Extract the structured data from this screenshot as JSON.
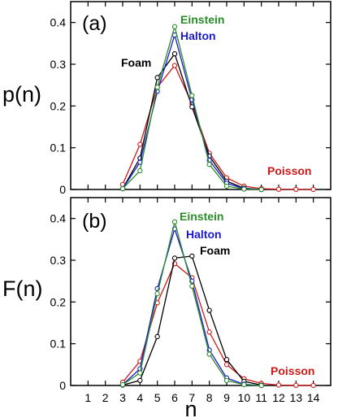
{
  "chart_data": [
    {
      "type": "line",
      "panel_label": "(a)",
      "ylabel": "p(n)",
      "xlabel": "",
      "xlim": [
        0,
        15
      ],
      "ylim": [
        0,
        0.45
      ],
      "x_ticks": [
        1,
        2,
        3,
        4,
        5,
        6,
        7,
        8,
        9,
        10,
        11,
        12,
        13,
        14
      ],
      "y_ticks": [
        0,
        0.1,
        0.2,
        0.3,
        0.4
      ],
      "y_tick_labels": [
        "0",
        "0.1",
        "0.2",
        "0.3",
        "0.4"
      ],
      "series": [
        {
          "name": "Einstein",
          "color": "#2a8c2a",
          "x": [
            3,
            4,
            5,
            6,
            7,
            8,
            9,
            10,
            11
          ],
          "y": [
            0.002,
            0.045,
            0.245,
            0.39,
            0.225,
            0.06,
            0.008,
            0.001,
            0
          ]
        },
        {
          "name": "Halton",
          "color": "#1a1acc",
          "x": [
            3,
            4,
            5,
            6,
            7,
            8,
            9,
            10,
            11
          ],
          "y": [
            0.002,
            0.065,
            0.235,
            0.37,
            0.215,
            0.07,
            0.015,
            0.002,
            0
          ]
        },
        {
          "name": "Foam",
          "color": "#000000",
          "x": [
            3,
            4,
            5,
            6,
            7,
            8,
            9,
            10,
            11
          ],
          "y": [
            0.002,
            0.075,
            0.268,
            0.325,
            0.198,
            0.08,
            0.02,
            0.003,
            0
          ]
        },
        {
          "name": "Poisson",
          "color": "#cc1a1a",
          "x": [
            3,
            4,
            5,
            6,
            7,
            8,
            9,
            10,
            11,
            12,
            13,
            14
          ],
          "y": [
            0.012,
            0.108,
            0.245,
            0.297,
            0.205,
            0.087,
            0.028,
            0.008,
            0.002,
            0.0005,
            0.0002,
            0.0001
          ]
        }
      ],
      "annotations": [
        {
          "text": "Einstein",
          "color": "#2a8c2a"
        },
        {
          "text": "Halton",
          "color": "#1a1acc"
        },
        {
          "text": "Foam",
          "color": "#000000"
        },
        {
          "text": "Poisson",
          "color": "#cc1a1a"
        }
      ]
    },
    {
      "type": "line",
      "panel_label": "(b)",
      "ylabel": "F(n)",
      "xlabel": "n",
      "xlim": [
        0,
        15
      ],
      "ylim": [
        0,
        0.45
      ],
      "x_ticks": [
        1,
        2,
        3,
        4,
        5,
        6,
        7,
        8,
        9,
        10,
        11,
        12,
        13,
        14
      ],
      "x_tick_labels": [
        "1",
        "2",
        "3",
        "4",
        "5",
        "6",
        "7",
        "8",
        "9",
        "10",
        "11",
        "12",
        "13",
        "14"
      ],
      "y_ticks": [
        0,
        0.1,
        0.2,
        0.3,
        0.4
      ],
      "y_tick_labels": [
        "0",
        "0.1",
        "0.2",
        "0.3",
        "0.4"
      ],
      "series": [
        {
          "name": "Einstein",
          "color": "#2a8c2a",
          "x": [
            3,
            4,
            5,
            6,
            7,
            8,
            9,
            10,
            11
          ],
          "y": [
            0.002,
            0.03,
            0.22,
            0.392,
            0.238,
            0.075,
            0.012,
            0.002,
            0
          ]
        },
        {
          "name": "Halton",
          "color": "#1a1acc",
          "x": [
            3,
            4,
            5,
            6,
            7,
            8,
            9,
            10,
            11
          ],
          "y": [
            0.002,
            0.04,
            0.232,
            0.375,
            0.25,
            0.085,
            0.018,
            0.003,
            0
          ]
        },
        {
          "name": "Foam",
          "color": "#000000",
          "x": [
            3,
            4,
            5,
            6,
            7,
            8,
            9,
            10,
            11
          ],
          "y": [
            0.001,
            0.012,
            0.117,
            0.305,
            0.31,
            0.18,
            0.062,
            0.01,
            0.001
          ]
        },
        {
          "name": "Poisson",
          "color": "#cc1a1a",
          "x": [
            3,
            4,
            5,
            6,
            7,
            8,
            9,
            10,
            11,
            12,
            13,
            14
          ],
          "y": [
            0.008,
            0.058,
            0.198,
            0.292,
            0.258,
            0.128,
            0.05,
            0.016,
            0.005,
            0.001,
            0.0003,
            0.0001
          ]
        }
      ],
      "annotations": [
        {
          "text": "Einstein",
          "color": "#2a8c2a"
        },
        {
          "text": "Halton",
          "color": "#1a1acc"
        },
        {
          "text": "Foam",
          "color": "#000000"
        },
        {
          "text": "Poisson",
          "color": "#cc1a1a"
        }
      ]
    }
  ]
}
